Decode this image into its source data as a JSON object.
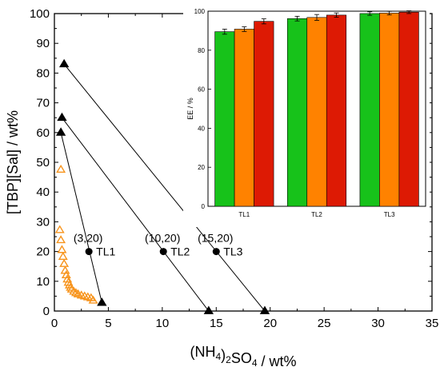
{
  "chart_data": [
    {
      "id": "main",
      "type": "scatter",
      "xlabel": "(NH4)2SO4 / wt%",
      "ylabel": "[TBP][Sal] / wt%",
      "xlim": [
        0,
        35
      ],
      "ylim": [
        0,
        100
      ],
      "xticks": [
        "0",
        "5",
        "10",
        "15",
        "20",
        "25",
        "30",
        "35"
      ],
      "yticks": [
        "0",
        "10",
        "20",
        "30",
        "40",
        "50",
        "60",
        "70",
        "80",
        "90",
        "100"
      ],
      "colors": {
        "binodal": "#f7941d",
        "tie": "#000000"
      },
      "binodal_points": [
        [
          0.6,
          47.5
        ],
        [
          0.5,
          27.2
        ],
        [
          0.6,
          23.8
        ],
        [
          0.7,
          20.5
        ],
        [
          0.8,
          18.2
        ],
        [
          0.9,
          15.8
        ],
        [
          1.0,
          13.5
        ],
        [
          1.1,
          12.0
        ],
        [
          1.2,
          10.6
        ],
        [
          1.3,
          9.5
        ],
        [
          1.4,
          8.6
        ],
        [
          1.5,
          7.8
        ],
        [
          1.6,
          7.2
        ],
        [
          1.8,
          6.5
        ],
        [
          2.0,
          6.0
        ],
        [
          2.2,
          5.6
        ],
        [
          2.5,
          5.2
        ],
        [
          2.8,
          4.9
        ],
        [
          3.1,
          4.6
        ],
        [
          3.4,
          4.3
        ],
        [
          3.6,
          3.5
        ]
      ],
      "tie_lines": [
        {
          "label": "TL1",
          "point_label": "(3,20)",
          "top": [
            0.6,
            60.0
          ],
          "mid": [
            3.2,
            20.0
          ],
          "bottom": [
            4.4,
            2.8
          ]
        },
        {
          "label": "TL2",
          "point_label": "(10,20)",
          "top": [
            0.7,
            65.0
          ],
          "mid": [
            10.1,
            20.0
          ],
          "bottom": [
            14.3,
            0.0
          ]
        },
        {
          "label": "TL3",
          "point_label": "(15,20)",
          "top": [
            0.9,
            83.0
          ],
          "mid": [
            15.0,
            20.0
          ],
          "bottom": [
            19.5,
            0.0
          ]
        }
      ]
    },
    {
      "id": "inset",
      "type": "bar",
      "ylabel": "EE / %",
      "ylim": [
        0,
        100
      ],
      "yticks": [
        "0",
        "20",
        "40",
        "60",
        "80",
        "100"
      ],
      "categories": [
        "TL1",
        "TL2",
        "TL3"
      ],
      "colors": [
        "#17c21a",
        "#ff8200",
        "#dd1a04"
      ],
      "series": [
        {
          "values": [
            89.5,
            96.2,
            98.8
          ],
          "errors": [
            1.3,
            1.2,
            0.9
          ]
        },
        {
          "values": [
            90.8,
            96.8,
            99.0
          ],
          "errors": [
            1.2,
            1.5,
            0.9
          ]
        },
        {
          "values": [
            94.8,
            98.0,
            99.5
          ],
          "errors": [
            1.3,
            1.1,
            0.7
          ]
        }
      ]
    }
  ]
}
